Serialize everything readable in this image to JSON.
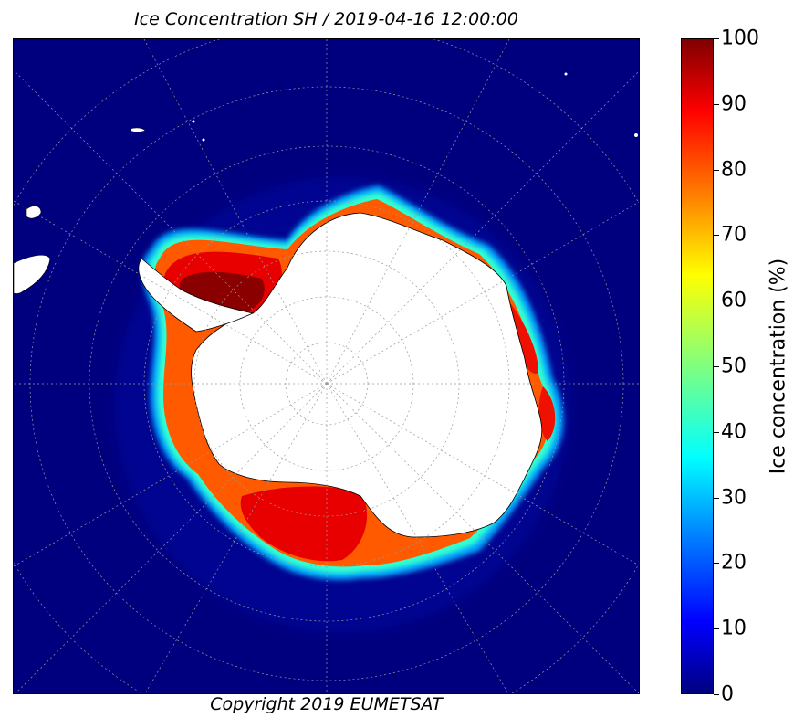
{
  "title": "Ice Concentration SH / 2019-04-16 12:00:00",
  "copyright": "Copyright 2019 EUMETSAT",
  "colorbar": {
    "label": "Ice concentration (%)",
    "ticks": [
      "0",
      "10",
      "20",
      "30",
      "40",
      "50",
      "60",
      "70",
      "80",
      "90",
      "100"
    ],
    "min": 0,
    "max": 100
  },
  "colors": {
    "ocean": "#00007f",
    "land": "#ffffff",
    "ice_high": "#7f0000",
    "ice_mid": "#ff0000",
    "ice_edge": "#00ffff"
  }
}
